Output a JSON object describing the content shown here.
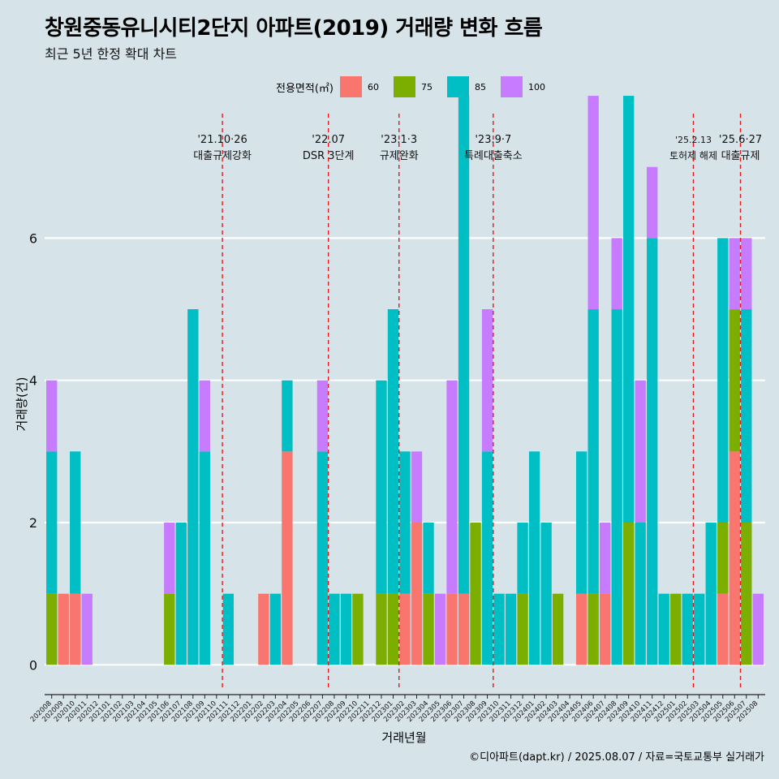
{
  "header": {
    "title": "창원중동유니시티2단지 아파트(2019) 거래량 변화 흐름",
    "subtitle": "최근 5년 한정 확대 차트"
  },
  "caption": "©디아파트(dapt.kr) / 2025.08.07 / 자료=국토교통부 실거래가",
  "colors": {
    "background": "#d6e4ea",
    "grid": "#ffffff",
    "event_line": "#e31a1c"
  },
  "chart_data": {
    "type": "bar",
    "xlabel": "거래년월",
    "ylabel": "거래량(건)",
    "ylim": [
      -0.35,
      7.75
    ],
    "yticks": [
      0,
      2,
      4,
      6
    ],
    "legend": {
      "title": "전용면적(㎡)",
      "position": "top"
    },
    "grid": true,
    "categories": [
      "202008",
      "202009",
      "202010",
      "202011",
      "202012",
      "202101",
      "202102",
      "202103",
      "202104",
      "202105",
      "202106",
      "202107",
      "202108",
      "202109",
      "202110",
      "202111",
      "202112",
      "202201",
      "202202",
      "202203",
      "202204",
      "202205",
      "202206",
      "202207",
      "202208",
      "202209",
      "202210",
      "202211",
      "202212",
      "202301",
      "202302",
      "202303",
      "202304",
      "202305",
      "202306",
      "202307",
      "202308",
      "202309",
      "202310",
      "202311",
      "202312",
      "202401",
      "202402",
      "202403",
      "202404",
      "202405",
      "202406",
      "202407",
      "202408",
      "202409",
      "202410",
      "202411",
      "202412",
      "202501",
      "202502",
      "202503",
      "202504",
      "202505",
      "202506",
      "202507",
      "202508"
    ],
    "series": [
      {
        "name": "60",
        "color": "#f8766d",
        "values": [
          0,
          1,
          1,
          0,
          0,
          0,
          0,
          0,
          0,
          0,
          0,
          0,
          0,
          0,
          0,
          0,
          0,
          0,
          1,
          0,
          3,
          0,
          0,
          0,
          0,
          0,
          0,
          0,
          0,
          0,
          1,
          2,
          0,
          0,
          1,
          1,
          0,
          0,
          0,
          0,
          0,
          0,
          0,
          0,
          0,
          1,
          0,
          1,
          0,
          0,
          0,
          0,
          0,
          0,
          0,
          0,
          0,
          1,
          3,
          0,
          0
        ]
      },
      {
        "name": "75",
        "color": "#7cae00",
        "values": [
          1,
          0,
          0,
          0,
          0,
          0,
          0,
          0,
          0,
          0,
          1,
          0,
          0,
          0,
          0,
          0,
          0,
          0,
          0,
          0,
          0,
          0,
          0,
          0,
          0,
          0,
          1,
          0,
          1,
          1,
          0,
          0,
          1,
          0,
          0,
          0,
          2,
          0,
          0,
          0,
          1,
          0,
          0,
          1,
          0,
          0,
          1,
          0,
          0,
          2,
          0,
          0,
          0,
          1,
          0,
          0,
          0,
          1,
          2,
          2,
          0
        ]
      },
      {
        "name": "85",
        "color": "#00bfc4",
        "values": [
          2,
          0,
          2,
          0,
          0,
          0,
          0,
          0,
          0,
          0,
          0,
          2,
          5,
          3,
          0,
          1,
          0,
          0,
          0,
          1,
          1,
          0,
          0,
          3,
          1,
          1,
          0,
          0,
          3,
          4,
          2,
          0,
          1,
          0,
          0,
          7,
          0,
          3,
          1,
          1,
          1,
          3,
          2,
          0,
          0,
          2,
          4,
          0,
          5,
          6,
          2,
          6,
          1,
          0,
          1,
          1,
          2,
          4,
          0,
          3,
          0
        ]
      },
      {
        "name": "100",
        "color": "#c77cff",
        "values": [
          1,
          0,
          0,
          1,
          0,
          0,
          0,
          0,
          0,
          0,
          1,
          0,
          0,
          1,
          0,
          0,
          0,
          0,
          0,
          0,
          0,
          0,
          0,
          1,
          0,
          0,
          0,
          0,
          0,
          0,
          0,
          1,
          0,
          1,
          3,
          0,
          0,
          2,
          0,
          0,
          0,
          0,
          0,
          0,
          0,
          0,
          3,
          1,
          1,
          0,
          2,
          1,
          0,
          0,
          0,
          0,
          0,
          0,
          1,
          1,
          1
        ]
      }
    ],
    "events": [
      {
        "after": "202110",
        "date": "'21.10·26",
        "label": "대출규제강화"
      },
      {
        "after": "202207",
        "date": "'22.07",
        "label": "DSR 3단계"
      },
      {
        "after": "202301",
        "date": "'23.1·3",
        "label": "규제완화"
      },
      {
        "after": "202309",
        "date": "'23.9·7",
        "label": "특례대출축소"
      },
      {
        "after": "202502",
        "date": "'25.2.13",
        "label": "토허제 해제"
      },
      {
        "after": "202506",
        "date": "'25.6·27",
        "label": "대출규제"
      }
    ]
  }
}
